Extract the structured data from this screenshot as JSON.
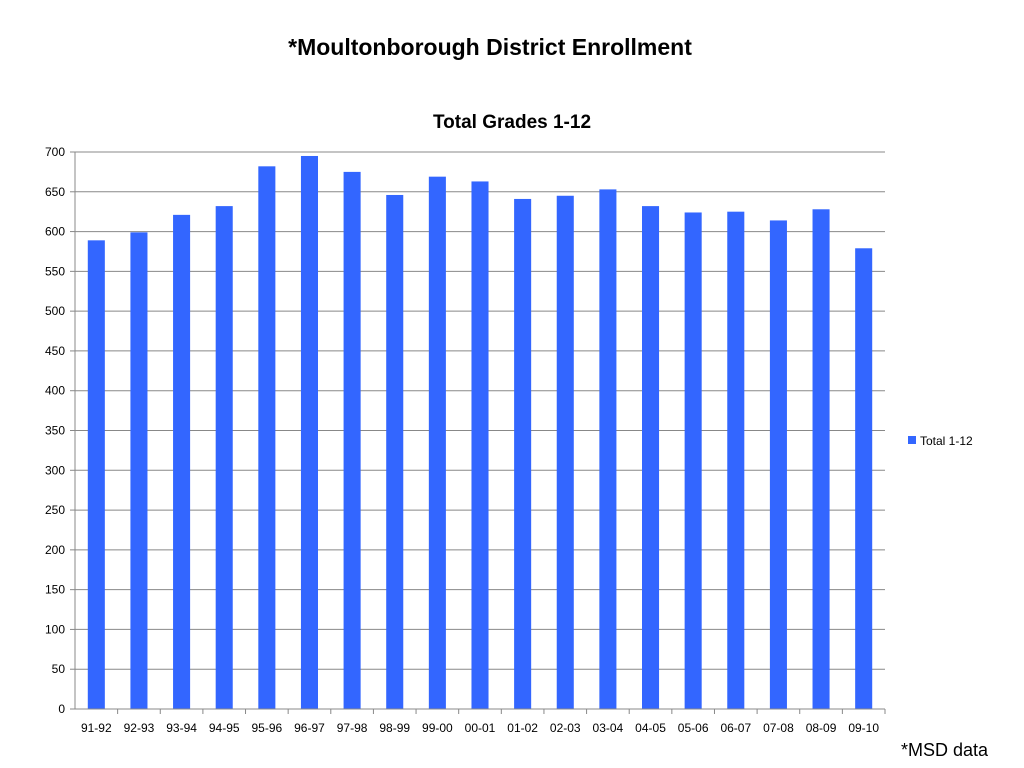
{
  "slide": {
    "title": "*Moultonborough District Enrollment",
    "footnote": "*MSD data"
  },
  "colors": {
    "bar": "#3366ff",
    "grid": "#888888",
    "axis": "#888888"
  },
  "chart_data": {
    "type": "bar",
    "title": "Total Grades 1-12",
    "xlabel": "",
    "ylabel": "",
    "ylim": [
      0,
      700
    ],
    "ytick_step": 50,
    "grid": true,
    "legend_position": "right",
    "categories": [
      "91-92",
      "92-93",
      "93-94",
      "94-95",
      "95-96",
      "96-97",
      "97-98",
      "98-99",
      "99-00",
      "00-01",
      "01-02",
      "02-03",
      "03-04",
      "04-05",
      "05-06",
      "06-07",
      "07-08",
      "08-09",
      "09-10"
    ],
    "series": [
      {
        "name": "Total 1-12",
        "values": [
          589,
          599,
          621,
          632,
          682,
          695,
          675,
          646,
          669,
          663,
          641,
          645,
          653,
          632,
          624,
          625,
          614,
          628,
          579
        ]
      }
    ]
  }
}
